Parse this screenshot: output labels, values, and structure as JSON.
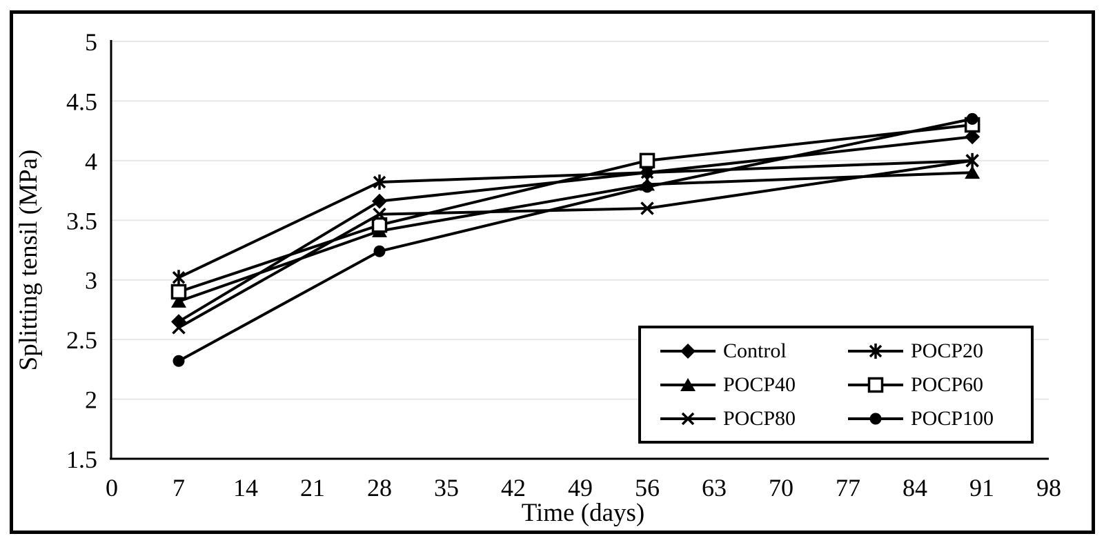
{
  "figure": {
    "background": "#ffffff",
    "border_color": "#000000",
    "text_color": "#000000"
  },
  "chart_data": {
    "type": "line",
    "title": "",
    "xlabel": "Time (days)",
    "ylabel": "Splitting tensil (MPa)",
    "x": [
      7,
      28,
      56,
      90
    ],
    "xlim": [
      0,
      98
    ],
    "ylim": [
      1.5,
      5
    ],
    "x_tick_values": [
      0,
      7,
      14,
      21,
      28,
      35,
      42,
      49,
      56,
      63,
      70,
      77,
      84,
      91,
      98
    ],
    "x_tick_labels": [
      "0",
      "7",
      "14",
      "21",
      "28",
      "35",
      "42",
      "49",
      "56",
      "63",
      "70",
      "77",
      "84",
      "91",
      "98"
    ],
    "y_tick_values": [
      1.5,
      2,
      2.5,
      3,
      3.5,
      4,
      4.5,
      5
    ],
    "y_tick_labels": [
      "1.5",
      "2",
      "2.5",
      "3",
      "3.5",
      "4",
      "4.5",
      "5"
    ],
    "grid": "horizontal",
    "gridline_color": "#e7e7e7",
    "line_color": "#000000",
    "legend_position": "inside-bottom-right-box",
    "series": [
      {
        "name": "Control",
        "marker": "diamond-filled",
        "values": [
          2.65,
          3.66,
          3.9,
          4.2
        ]
      },
      {
        "name": "POCP20",
        "marker": "asterisk",
        "values": [
          3.02,
          3.82,
          3.9,
          4.0
        ]
      },
      {
        "name": "POCP40",
        "marker": "triangle-filled",
        "values": [
          2.82,
          3.41,
          3.8,
          3.9
        ]
      },
      {
        "name": "POCP60",
        "marker": "square-open",
        "values": [
          2.9,
          3.46,
          4.0,
          4.3
        ]
      },
      {
        "name": "POCP80",
        "marker": "x",
        "values": [
          2.6,
          3.55,
          3.6,
          4.0
        ]
      },
      {
        "name": "POCP100",
        "marker": "circle-filled",
        "values": [
          2.32,
          3.24,
          3.78,
          4.35
        ]
      }
    ]
  }
}
